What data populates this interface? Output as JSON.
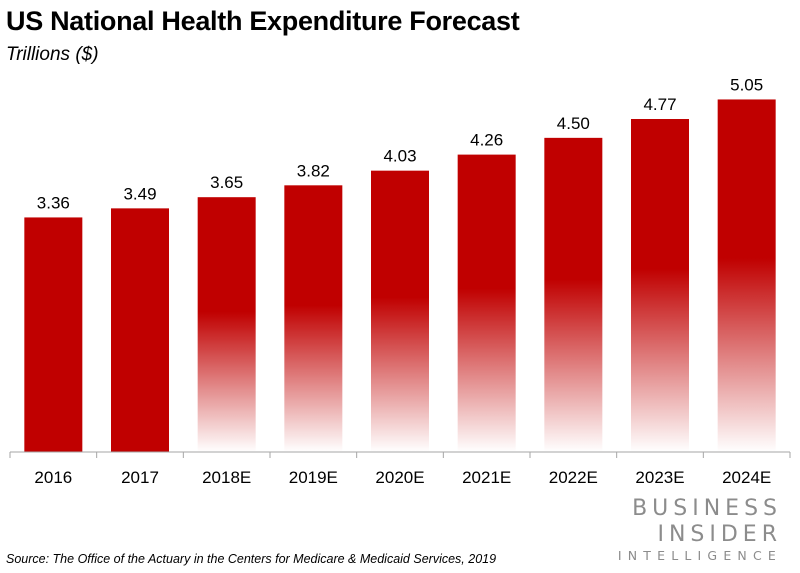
{
  "chart_data": {
    "type": "bar",
    "title": "US National Health Expenditure Forecast",
    "subtitle": "Trillions ($)",
    "categories": [
      "2016",
      "2017",
      "2018E",
      "2019E",
      "2020E",
      "2021E",
      "2022E",
      "2023E",
      "2024E"
    ],
    "values": [
      3.36,
      3.49,
      3.65,
      3.82,
      4.03,
      4.26,
      4.5,
      4.77,
      5.05
    ],
    "value_labels": [
      "3.36",
      "3.49",
      "3.65",
      "3.82",
      "4.03",
      "4.26",
      "4.50",
      "4.77",
      "5.05"
    ],
    "estimated": [
      false,
      false,
      true,
      true,
      true,
      true,
      true,
      true,
      true
    ],
    "xlabel": "",
    "ylabel": "",
    "ylim": [
      0,
      5.3
    ],
    "grid": false,
    "bar_color": "#c00000"
  },
  "source": "Source: The Office of the Actuary in the Centers for Medicare & Medicaid Services, 2019",
  "logo": {
    "line1": "BUSINESS",
    "line2": "INSIDER",
    "line3": "INTELLIGENCE"
  }
}
